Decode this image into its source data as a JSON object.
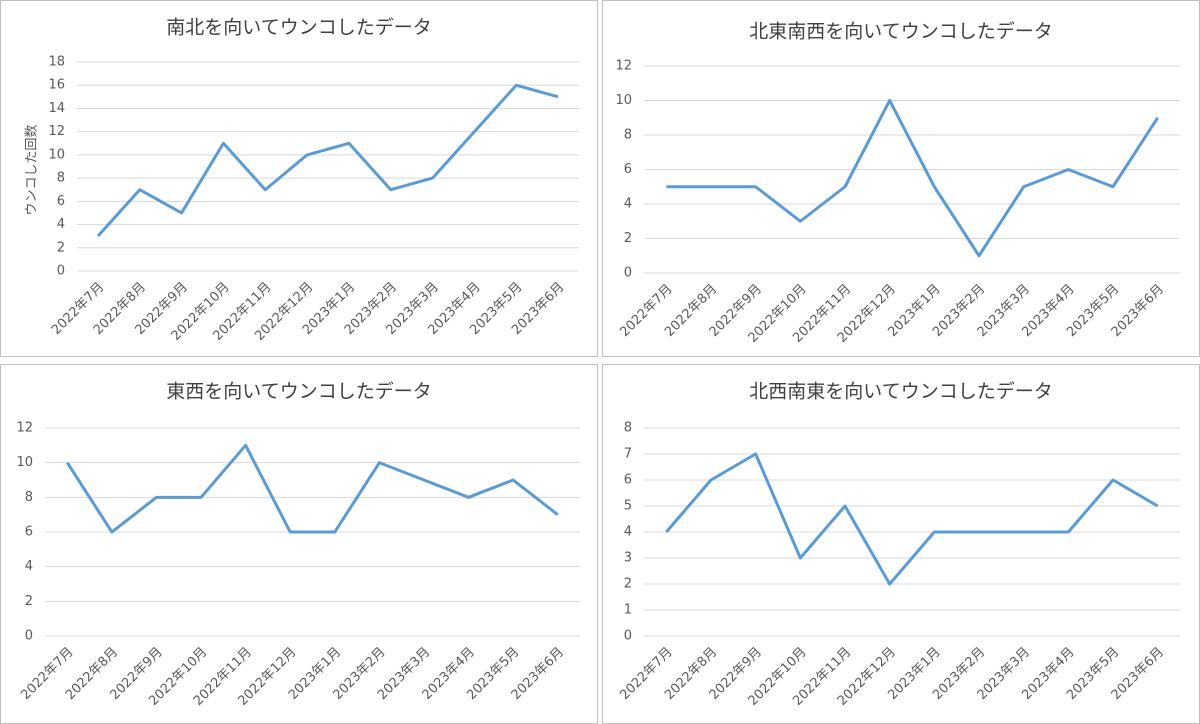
{
  "chart_data": [
    {
      "type": "line",
      "title": "南北を向いてウンコしたデータ",
      "y_label": "ウンコした回数",
      "categories": [
        "2022年7月",
        "2022年8月",
        "2022年9月",
        "2022年10月",
        "2022年11月",
        "2022年12月",
        "2023年1月",
        "2023年2月",
        "2023年3月",
        "2023年4月",
        "2023年5月",
        "2023年6月"
      ],
      "values": [
        3,
        7,
        5,
        11,
        7,
        10,
        11,
        7,
        8,
        12,
        16,
        15
      ],
      "color": "#5b9bd5",
      "ylim": [
        0,
        18
      ],
      "yticks": [
        0,
        2,
        4,
        6,
        8,
        10,
        12,
        14,
        16,
        18
      ],
      "grid": true
    },
    {
      "type": "line",
      "title": "北東南西を向いてウンコしたデータ",
      "categories": [
        "2022年7月",
        "2022年8月",
        "2022年9月",
        "2022年10月",
        "2022年11月",
        "2022年12月",
        "2023年1月",
        "2023年2月",
        "2023年3月",
        "2023年4月",
        "2023年5月",
        "2023年6月"
      ],
      "values": [
        5,
        5,
        5,
        3,
        5,
        10,
        5,
        1,
        5,
        6,
        5,
        9
      ],
      "color": "#5b9bd5",
      "ylim": [
        0,
        12
      ],
      "yticks": [
        0,
        2,
        4,
        6,
        8,
        10,
        12
      ],
      "grid": true
    },
    {
      "type": "line",
      "title": "東西を向いてウンコしたデータ",
      "categories": [
        "2022年7月",
        "2022年8月",
        "2022年9月",
        "2022年10月",
        "2022年11月",
        "2022年12月",
        "2023年1月",
        "2023年2月",
        "2023年3月",
        "2023年4月",
        "2023年5月",
        "2023年6月"
      ],
      "values": [
        10,
        6,
        8,
        8,
        11,
        6,
        6,
        10,
        9,
        8,
        9,
        7
      ],
      "color": "#5b9bd5",
      "ylim": [
        0,
        12
      ],
      "yticks": [
        0,
        2,
        4,
        6,
        8,
        10,
        12
      ],
      "grid": true
    },
    {
      "type": "line",
      "title": "北西南東を向いてウンコしたデータ",
      "categories": [
        "2022年7月",
        "2022年8月",
        "2022年9月",
        "2022年10月",
        "2022年11月",
        "2022年12月",
        "2023年1月",
        "2023年2月",
        "2023年3月",
        "2023年4月",
        "2023年5月",
        "2023年6月"
      ],
      "values": [
        4,
        6,
        7,
        3,
        5,
        2,
        4,
        4,
        4,
        4,
        6,
        5
      ],
      "color": "#5b9bd5",
      "ylim": [
        0,
        8
      ],
      "yticks": [
        0,
        1,
        2,
        3,
        4,
        5,
        6,
        7,
        8
      ],
      "grid": true
    }
  ]
}
